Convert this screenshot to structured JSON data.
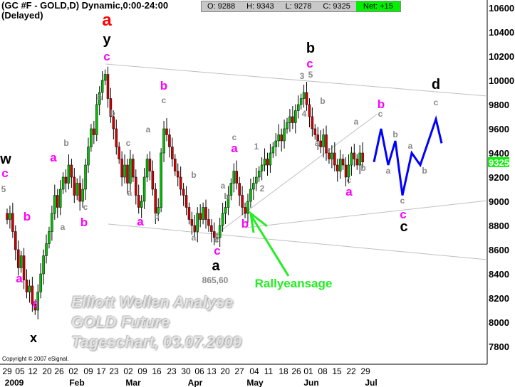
{
  "header": {
    "title": "(GC #F - GOLD,D) Dynamic,0:00-24:00 (Delayed)",
    "quote": {
      "open": "O: 9288",
      "high": "H: 9343",
      "low": "L: 9278",
      "close": "C: 9325",
      "net": "Net: +15"
    }
  },
  "watermark": [
    "Elliott Wellen Analyse",
    "GOLD Future",
    "Tageschart, 03.07.2009"
  ],
  "copyright": "Copyright © 2007 eSignal.",
  "colors": {
    "up": "#00c000",
    "down": "#d00000",
    "wave_major": "#ff00ff",
    "wave_minor": "#888888",
    "forecast": "#0000ff",
    "signal": "#22ee22",
    "last_price_bg": "#00f000"
  },
  "chart_data": {
    "type": "candlestick",
    "title": "(GC #F - GOLD,D) Dynamic,0:00-24:00 (Delayed)",
    "ylim": [
      7700,
      10700
    ],
    "y_ticks": [
      10600,
      10400,
      10200,
      10000,
      9800,
      9600,
      9400,
      9200,
      9000,
      8800,
      8600,
      8400,
      8200,
      8000,
      7800
    ],
    "last_price": "9325",
    "x_tick_labels": [
      "29",
      "05",
      "12",
      "20",
      "26",
      "02",
      "09",
      "17",
      "23",
      "02",
      "09",
      "16",
      "23",
      "30",
      "06",
      "13",
      "20",
      "27",
      "04",
      "11",
      "18",
      "26",
      "01",
      "08",
      "15",
      "22",
      "29"
    ],
    "month_labels": [
      "2009",
      "Feb",
      "Mar",
      "Apr",
      "May",
      "Jun",
      "Jul"
    ],
    "closes": [
      8850,
      8900,
      8750,
      8600,
      8450,
      8550,
      8350,
      8250,
      8300,
      8150,
      8100,
      8250,
      8400,
      8550,
      8650,
      8750,
      8900,
      9050,
      8950,
      9100,
      9200,
      9150,
      9300,
      9200,
      9050,
      9150,
      9000,
      9100,
      9300,
      9450,
      9600,
      9550,
      9800,
      9900,
      10000,
      10050,
      9850,
      9700,
      9600,
      9450,
      9350,
      9200,
      9300,
      9150,
      9350,
      9200,
      9050,
      8950,
      9000,
      9200,
      9350,
      9250,
      9100,
      8900,
      8950,
      9400,
      9600,
      9550,
      9450,
      9350,
      9250,
      9200,
      9100,
      9050,
      8950,
      8850,
      8800,
      8750,
      8900,
      8850,
      8950,
      8850,
      8800,
      8750,
      8700,
      8700,
      8800,
      8900,
      8950,
      9050,
      9150,
      9250,
      9150,
      9050,
      8950,
      8900,
      9000,
      9100,
      9150,
      9200,
      9250,
      9300,
      9350,
      9300,
      9400,
      9450,
      9500,
      9550,
      9500,
      9600,
      9650,
      9700,
      9650,
      9750,
      9800,
      9850,
      9900,
      9800,
      9700,
      9600,
      9550,
      9500,
      9450,
      9550,
      9400,
      9350,
      9400,
      9300,
      9250,
      9350,
      9300,
      9200,
      9300,
      9400,
      9350,
      9300,
      9400,
      9325
    ],
    "forecast": {
      "prices": [
        9325,
        9600,
        9300,
        9500,
        9050,
        9400,
        9300,
        9680,
        9480
      ]
    },
    "annotations": [
      {
        "text": "a",
        "color": "#ff0000"
      },
      {
        "text": "y",
        "color": "#000000"
      },
      {
        "text": "c",
        "color": "#ff00ff"
      },
      {
        "text": "w",
        "color": "#000000"
      },
      {
        "text": "c",
        "color": "#ff00ff"
      },
      {
        "text": "5",
        "color": "#888888"
      },
      {
        "text": "b",
        "color": "#ff00ff"
      },
      {
        "text": "a",
        "color": "#ff00ff"
      },
      {
        "text": "c",
        "color": "#ff00ff"
      },
      {
        "text": "x",
        "color": "#000000"
      },
      {
        "text": "a",
        "color": "#ff00ff"
      },
      {
        "text": "b",
        "color": "#888888"
      },
      {
        "text": "c",
        "color": "#888888"
      },
      {
        "text": "b",
        "color": "#ff00ff"
      },
      {
        "text": "a",
        "color": "#888888"
      },
      {
        "text": "a",
        "color": "#888888"
      },
      {
        "text": "b",
        "color": "#888888"
      },
      {
        "text": "c",
        "color": "#888888"
      },
      {
        "text": "a",
        "color": "#888888"
      },
      {
        "text": "a",
        "color": "#ff00ff"
      },
      {
        "text": "b",
        "color": "#888888"
      },
      {
        "text": "b",
        "color": "#ff00ff"
      },
      {
        "text": "c",
        "color": "#888888"
      },
      {
        "text": "a",
        "color": "#888888"
      },
      {
        "text": "b",
        "color": "#888888"
      },
      {
        "text": "a",
        "color": "#888888"
      },
      {
        "text": "c",
        "color": "#888888"
      },
      {
        "text": "c",
        "color": "#ff00ff"
      },
      {
        "text": "a",
        "color": "#000000"
      },
      {
        "text": "865,60",
        "color": "#888888"
      },
      {
        "text": "a",
        "color": "#ff00ff"
      },
      {
        "text": "c",
        "color": "#888888"
      },
      {
        "text": "a",
        "color": "#888888"
      },
      {
        "text": "b",
        "color": "#888888"
      },
      {
        "text": "b",
        "color": "#ff00ff"
      },
      {
        "text": "1",
        "color": "#888888"
      },
      {
        "text": "2",
        "color": "#888888"
      },
      {
        "text": "b",
        "color": "#000000"
      },
      {
        "text": "c",
        "color": "#ff00ff"
      },
      {
        "text": "3",
        "color": "#888888"
      },
      {
        "text": "5",
        "color": "#888888"
      },
      {
        "text": "4",
        "color": "#888888"
      },
      {
        "text": "b",
        "color": "#888888"
      },
      {
        "text": "a",
        "color": "#888888"
      },
      {
        "text": "c",
        "color": "#888888"
      },
      {
        "text": "a",
        "color": "#ff00ff"
      },
      {
        "text": "b",
        "color": "#888888"
      },
      {
        "text": "a",
        "color": "#888888"
      },
      {
        "text": "b",
        "color": "#ff00ff"
      },
      {
        "text": "c",
        "color": "#888888"
      },
      {
        "text": "a",
        "color": "#888888"
      },
      {
        "text": "b",
        "color": "#888888"
      },
      {
        "text": "a",
        "color": "#888888"
      },
      {
        "text": "b",
        "color": "#888888"
      },
      {
        "text": "c",
        "color": "#888888"
      },
      {
        "text": "c",
        "color": "#ff00ff"
      },
      {
        "text": "c",
        "color": "#000000"
      },
      {
        "text": "c",
        "color": "#888888"
      },
      {
        "text": "d",
        "color": "#000000"
      },
      {
        "text": "Rallyeansage",
        "color": "#22ee22"
      }
    ]
  }
}
